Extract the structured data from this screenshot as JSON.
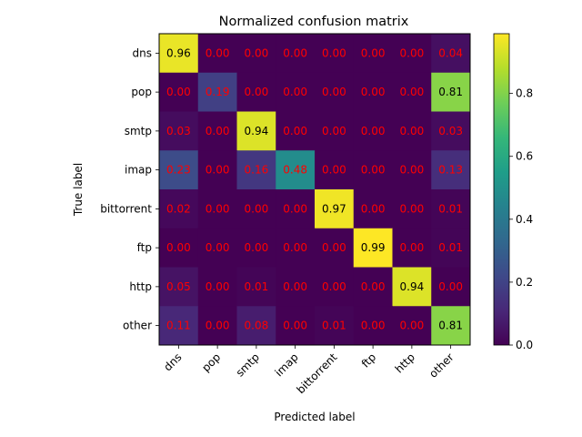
{
  "chart_data": {
    "type": "heatmap",
    "title": "Normalized confusion matrix",
    "xlabel": "Predicted label",
    "ylabel": "True label",
    "x_categories": [
      "dns",
      "pop",
      "smtp",
      "imap",
      "bittorrent",
      "ftp",
      "http",
      "other"
    ],
    "y_categories": [
      "dns",
      "pop",
      "smtp",
      "imap",
      "bittorrent",
      "ftp",
      "http",
      "other"
    ],
    "values": [
      [
        0.96,
        0.0,
        0.0,
        0.0,
        0.0,
        0.0,
        0.0,
        0.04
      ],
      [
        0.0,
        0.19,
        0.0,
        0.0,
        0.0,
        0.0,
        0.0,
        0.81
      ],
      [
        0.03,
        0.0,
        0.94,
        0.0,
        0.0,
        0.0,
        0.0,
        0.03
      ],
      [
        0.23,
        0.0,
        0.16,
        0.48,
        0.0,
        0.0,
        0.0,
        0.13
      ],
      [
        0.02,
        0.0,
        0.0,
        0.0,
        0.97,
        0.0,
        0.0,
        0.01
      ],
      [
        0.0,
        0.0,
        0.0,
        0.0,
        0.0,
        0.99,
        0.0,
        0.01
      ],
      [
        0.05,
        0.0,
        0.01,
        0.0,
        0.0,
        0.0,
        0.94,
        0.0
      ],
      [
        0.11,
        0.0,
        0.08,
        0.0,
        0.01,
        0.0,
        0.0,
        0.81
      ]
    ],
    "cell_labels": [
      [
        "0.96",
        "0.00",
        "0.00",
        "0.00",
        "0.00",
        "0.00",
        "0.00",
        "0.04"
      ],
      [
        "0.00",
        "0.19",
        "0.00",
        "0.00",
        "0.00",
        "0.00",
        "0.00",
        "0.81"
      ],
      [
        "0.03",
        "0.00",
        "0.94",
        "0.00",
        "0.00",
        "0.00",
        "0.00",
        "0.03"
      ],
      [
        "0.23",
        "0.00",
        "0.16",
        "0.48",
        "0.00",
        "0.00",
        "0.00",
        "0.13"
      ],
      [
        "0.02",
        "0.00",
        "0.00",
        "0.00",
        "0.97",
        "0.00",
        "0.00",
        "0.01"
      ],
      [
        "0.00",
        "0.00",
        "0.00",
        "0.00",
        "0.00",
        "0.99",
        "0.00",
        "0.01"
      ],
      [
        "0.05",
        "0.00",
        "0.01",
        "0.00",
        "0.00",
        "0.00",
        "0.94",
        "0.00"
      ],
      [
        "0.11",
        "0.00",
        "0.08",
        "0.00",
        "0.01",
        "0.00",
        "0.00",
        "0.81"
      ]
    ],
    "colormap": "viridis",
    "colorbar": {
      "range": [
        0.0,
        0.99
      ],
      "ticks": [
        0.0,
        0.2,
        0.4,
        0.6,
        0.8
      ],
      "tick_labels": [
        "0.0",
        "0.2",
        "0.4",
        "0.6",
        "0.8"
      ]
    },
    "label_colors": {
      "dark_text": "#000000",
      "light_text": "#ff0000"
    },
    "grid": false
  }
}
